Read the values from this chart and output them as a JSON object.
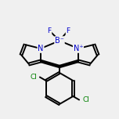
{
  "bg_color": "#f0f0f0",
  "line_color": "#000000",
  "N_color": "#0000cc",
  "B_color": "#0000cc",
  "Cl_color": "#008000",
  "F_color": "#0000cc",
  "line_width": 1.4,
  "figsize": [
    1.52,
    1.52
  ],
  "dpi": 100,
  "B_label": "B⁻",
  "N_left_label": "N",
  "N_right_label": "N⁺",
  "F1_label": "F",
  "F2_label": "F",
  "Cl1_label": "Cl",
  "Cl2_label": "Cl",
  "font_size": 7.0
}
